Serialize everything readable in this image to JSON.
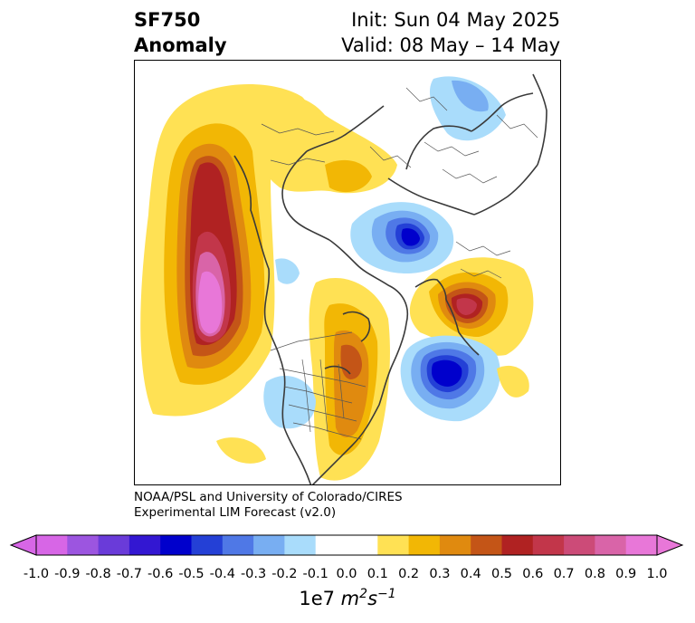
{
  "title": {
    "left_line1": "SF750",
    "left_line2": "Anomaly",
    "right_line1": "Init: Sun 04 May 2025",
    "right_line2": "Valid: 08 May – 14 May"
  },
  "credit": {
    "line1": "NOAA/PSL and University of Colorado/CIRES",
    "line2": "Experimental LIM Forecast (v2.0)"
  },
  "colorbar": {
    "ticks": [
      "-1.0",
      "-0.9",
      "-0.8",
      "-0.7",
      "-0.6",
      "-0.5",
      "-0.4",
      "-0.3",
      "-0.2",
      "-0.1",
      "0.0",
      "0.1",
      "0.2",
      "0.3",
      "0.4",
      "0.5",
      "0.6",
      "0.7",
      "0.8",
      "0.9",
      "1.0"
    ],
    "colors": [
      "#d766e6",
      "#9c55e0",
      "#6a3bd9",
      "#3317d2",
      "#0000cc",
      "#2440d6",
      "#4f78e6",
      "#78aef2",
      "#a9dcfb",
      "#ffffff",
      "#ffffff",
      "#ffe154",
      "#f2b705",
      "#e08a0f",
      "#c45517",
      "#b02222",
      "#c2364a",
      "#cc4b78",
      "#d964a8",
      "#e877d8"
    ],
    "under_color": "#d766e6",
    "over_color": "#e877d8",
    "unit_prefix": "1e7",
    "unit_m": "m",
    "unit_m_exp": "2",
    "unit_s": "s",
    "unit_s_exp": "−1"
  }
}
